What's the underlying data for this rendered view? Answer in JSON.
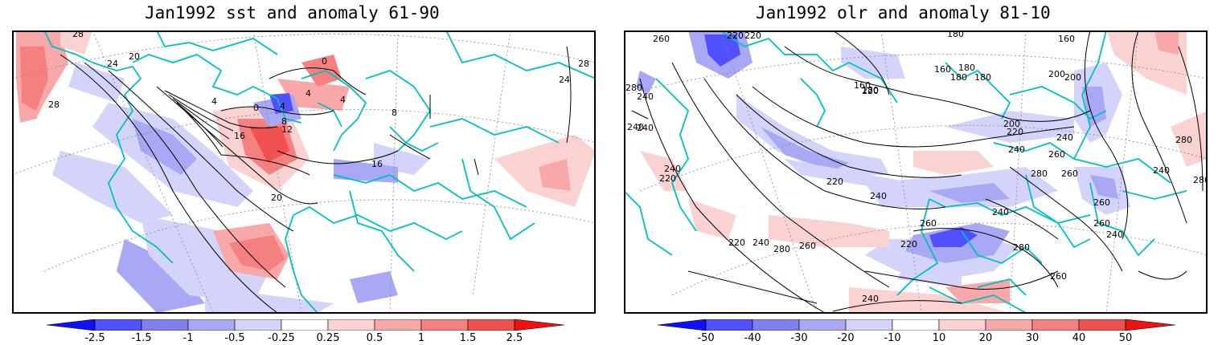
{
  "panels": [
    {
      "title": "Jan1992 sst and anomaly 61-90",
      "contour_labels": [
        "28",
        "24",
        "20",
        "28",
        "0",
        "4",
        "0",
        "4",
        "4",
        "4",
        "8",
        "12",
        "16",
        "8",
        "16",
        "20",
        "24",
        "28"
      ],
      "colorbar": {
        "labels": [
          "-2.5",
          "-1.5",
          "-1",
          "-0.5",
          "-0.25",
          "0.25",
          "0.5",
          "1",
          "1.5",
          "2.5"
        ],
        "colors": [
          "#1010ff",
          "#5050ff",
          "#8080f0",
          "#a8a8f4",
          "#d4d4fa",
          "#ffffff",
          "#fbd2d2",
          "#f8a8a8",
          "#f58080",
          "#f35050",
          "#f31010"
        ]
      }
    },
    {
      "title": "Jan1992 olr and anomaly 81-10",
      "contour_labels": [
        "260",
        "220",
        "220",
        "180",
        "160",
        "280",
        "240",
        "160",
        "180",
        "180",
        "180",
        "200",
        "240",
        "220",
        "200",
        "240",
        "200",
        "220",
        "240",
        "260",
        "280",
        "240",
        "220",
        "240",
        "260",
        "280",
        "260",
        "240",
        "240",
        "260",
        "260",
        "220",
        "240",
        "220",
        "280",
        "260",
        "240",
        "280",
        "220",
        "240",
        "260",
        "240",
        "160",
        "180",
        "280"
      ],
      "colorbar": {
        "labels": [
          "-50",
          "-40",
          "-30",
          "-20",
          "-10",
          "10",
          "20",
          "30",
          "40",
          "50"
        ],
        "colors": [
          "#1010ff",
          "#5050ff",
          "#8080f0",
          "#a8a8f4",
          "#d4d4fa",
          "#ffffff",
          "#fbd2d2",
          "#f8a8a8",
          "#f58080",
          "#f35050",
          "#f31010"
        ]
      }
    }
  ],
  "coast_color": "#00c0c0",
  "contour_color": "#000000",
  "grid_color": "#888888"
}
